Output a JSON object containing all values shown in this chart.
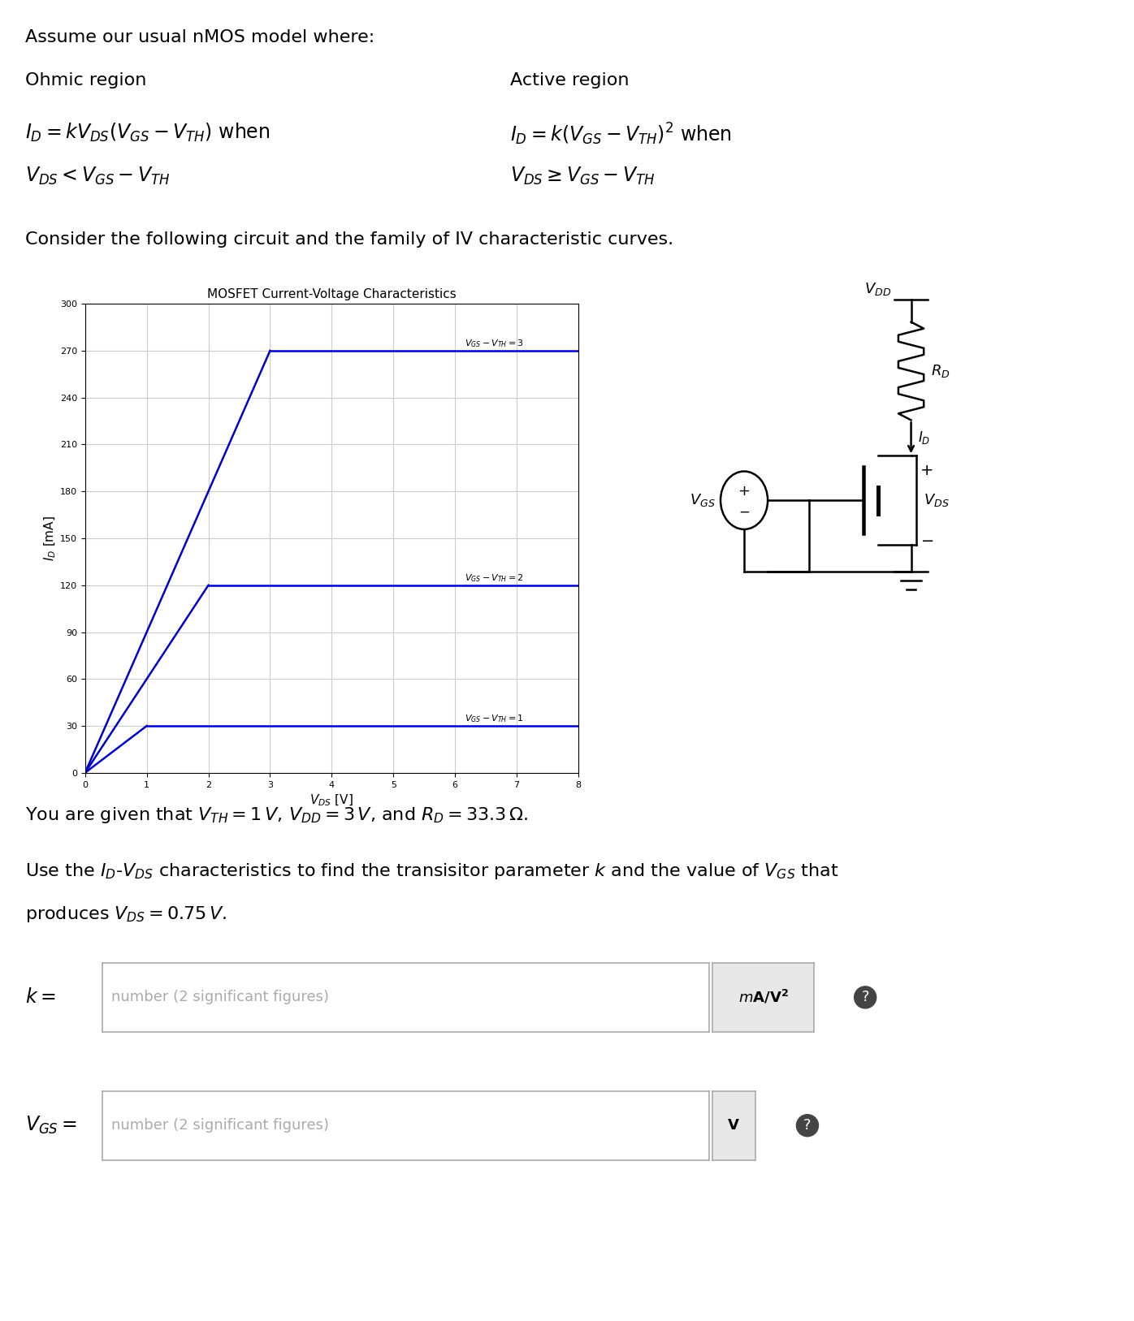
{
  "title_top": "Assume our usual nMOS model where:",
  "ohmic_label": "Ohmic region",
  "active_label": "Active region",
  "ohmic_eq1": "$I_D = kV_{DS}(V_{GS} - V_{TH})$ when",
  "ohmic_eq2": "$V_{DS} < V_{GS} - V_{TH}$",
  "active_eq1": "$I_D = k(V_{GS} - V_{TH})^2$ when",
  "active_eq2": "$V_{DS} \\geq V_{GS} - V_{TH}$",
  "consider_text": "Consider the following circuit and the family of IV characteristic curves.",
  "plot_title": "MOSFET Current-Voltage Characteristics",
  "xlabel": "$V_{DS}$ [V]",
  "ylabel": "$I_D$ [mA]",
  "xlim": [
    0,
    8
  ],
  "ylim": [
    0,
    300
  ],
  "xticks": [
    0,
    1,
    2,
    3,
    4,
    5,
    6,
    7,
    8
  ],
  "yticks": [
    0,
    30,
    60,
    90,
    120,
    150,
    180,
    210,
    240,
    270,
    300
  ],
  "curve_color": "#0000cc",
  "curves": [
    {
      "vgs_vth": 1,
      "id_sat": 30,
      "vds_sat": 1,
      "label": "$V_{GS} - V_{TH} = 1$"
    },
    {
      "vgs_vth": 2,
      "id_sat": 120,
      "vds_sat": 2,
      "label": "$V_{GS} - V_{TH} = 2$"
    },
    {
      "vgs_vth": 3,
      "id_sat": 270,
      "vds_sat": 3,
      "label": "$V_{GS} - V_{TH} = 3$"
    }
  ],
  "given_text": "You are given that $V_{TH} = 1\\,V$, $V_{DD} = 3\\,V$, and $R_D = 33.3\\,\\Omega$.",
  "use_text1": "Use the $I_D$-$V_{DS}$ characteristics to find the transisitor parameter $k$ and the value of $V_{GS}$ that",
  "use_text2": "produces $V_{DS} = 0.75\\,V$.",
  "k_label": "$k =$",
  "k_placeholder": "number (2 significant figures)",
  "k_unit": "$\\mathit{m}A/V^2$",
  "vgs_label": "$V_{GS} =$",
  "vgs_placeholder": "number (2 significant figures)",
  "vgs_unit": "V",
  "bg_color": "#ffffff",
  "grid_color": "#cccccc",
  "input_box_color": "#ffffff",
  "input_box_edge": "#aaaaaa",
  "unit_box_color": "#e8e8e8"
}
